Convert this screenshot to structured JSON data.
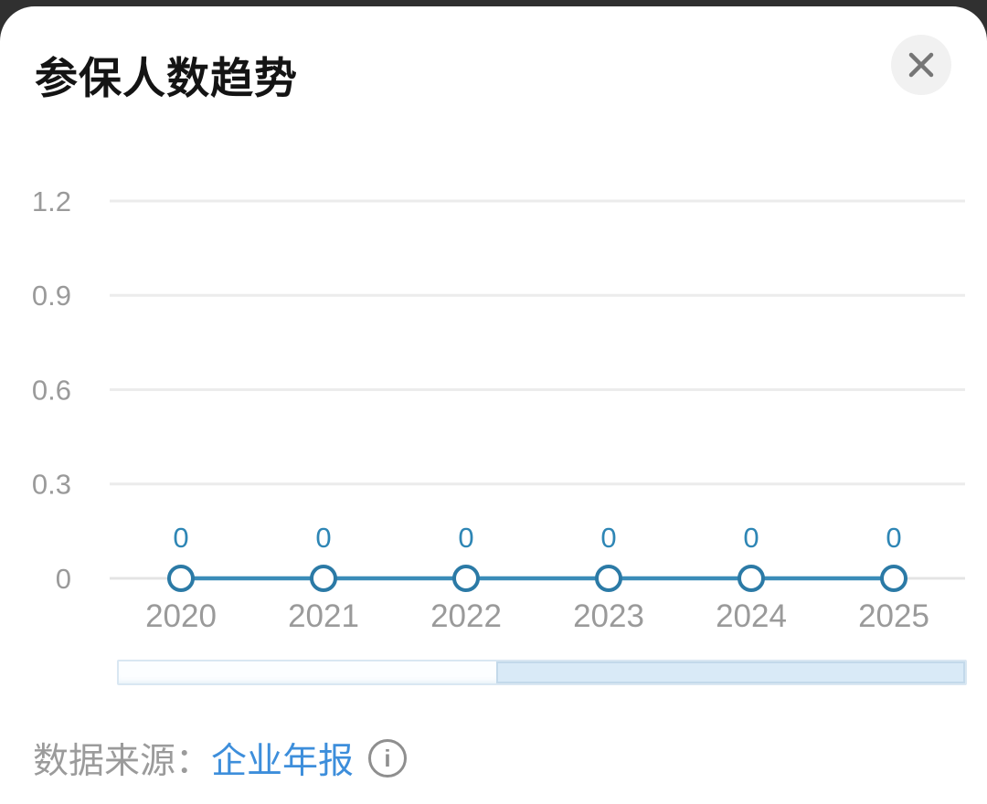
{
  "modal": {
    "title": "参保人数趋势",
    "close_icon": "x"
  },
  "chart_data": {
    "type": "line",
    "title": "参保人数趋势",
    "categories": [
      "2020",
      "2021",
      "2022",
      "2023",
      "2024",
      "2025"
    ],
    "values": [
      0,
      0,
      0,
      0,
      0,
      0
    ],
    "point_labels": [
      "0",
      "0",
      "0",
      "0",
      "0",
      "0"
    ],
    "y_ticks": [
      "1.2",
      "0.9",
      "0.6",
      "0.3",
      "0"
    ],
    "y_tick_values": [
      1.2,
      0.9,
      0.6,
      0.3,
      0
    ],
    "ylim": [
      0,
      1.2
    ],
    "grid": true,
    "legend": "none",
    "colors": {
      "line": "#3a8cb8",
      "marker_fill": "#ffffff",
      "marker_stroke": "#2b7aa6",
      "point_label": "#2e86b5",
      "axis_text": "#9a9a9a",
      "gridline": "#ececec",
      "zero_axis": "#e4e4e4"
    }
  },
  "slider": {
    "window_percent": 44.6,
    "window_fill": "#fcfeff",
    "rest_fill": "#d9eaf7"
  },
  "footer": {
    "source_label": "数据来源：",
    "source_value": "企业年报",
    "info_glyph": "i"
  }
}
